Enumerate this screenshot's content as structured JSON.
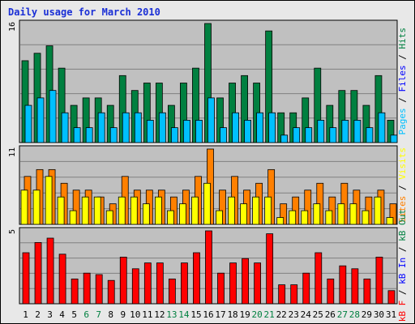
{
  "chart_data": {
    "type": "bar",
    "title": "Daily usage for March 2010",
    "days": [
      "1",
      "2",
      "3",
      "4",
      "5",
      "6",
      "7",
      "8",
      "9",
      "10",
      "11",
      "12",
      "13",
      "14",
      "15",
      "16",
      "17",
      "18",
      "19",
      "20",
      "21",
      "22",
      "23",
      "24",
      "25",
      "26",
      "27",
      "28",
      "29",
      "30",
      "31"
    ],
    "weekend_days": [
      "6",
      "7",
      "13",
      "14",
      "20",
      "21",
      "27",
      "28"
    ],
    "panels": [
      {
        "id": "hits-files-pages",
        "ymax_label": "16",
        "ymax": 16,
        "legend": [
          {
            "label": "Pages",
            "color": "#00c0ff"
          },
          {
            "label": " / ",
            "color": "#000000"
          },
          {
            "label": "Files",
            "color": "#0000ff"
          },
          {
            "label": " / ",
            "color": "#000000"
          },
          {
            "label": "Hits",
            "color": "#008040"
          }
        ],
        "series": [
          {
            "name": "Hits",
            "color": "#008040",
            "values": [
              11,
              12,
              13,
              10,
              5,
              6,
              6,
              5,
              9,
              7,
              8,
              8,
              5,
              8,
              10,
              16,
              6,
              8,
              9,
              8,
              15,
              4,
              4,
              6,
              10,
              5,
              7,
              7,
              5,
              9,
              3
            ]
          },
          {
            "name": "Files",
            "color": "#0000ff",
            "values": [
              5,
              6,
              7,
              4,
              2,
              2,
              4,
              2,
              4,
              4,
              3,
              4,
              2,
              3,
              3,
              6,
              2,
              4,
              3,
              4,
              4,
              1,
              2,
              2,
              3,
              2,
              3,
              3,
              2,
              4,
              1
            ]
          },
          {
            "name": "Pages",
            "color": "#00c0ff",
            "values": [
              5,
              6,
              7,
              4,
              2,
              2,
              4,
              2,
              4,
              4,
              3,
              4,
              2,
              3,
              3,
              6,
              2,
              4,
              3,
              4,
              4,
              1,
              2,
              2,
              3,
              2,
              3,
              3,
              2,
              4,
              1
            ]
          }
        ]
      },
      {
        "id": "visits-sites",
        "ymax_label": "11",
        "ymax": 11,
        "legend": [
          {
            "label": "Sites",
            "color": "#ff8000"
          },
          {
            "label": " / ",
            "color": "#000000"
          },
          {
            "label": "Visits",
            "color": "#ffff00"
          }
        ],
        "series": [
          {
            "name": "Sites",
            "color": "#ff8000",
            "values": [
              7,
              8,
              8,
              6,
              5,
              5,
              4,
              3,
              7,
              5,
              5,
              5,
              4,
              5,
              7,
              11,
              5,
              7,
              5,
              6,
              8,
              3,
              4,
              5,
              6,
              4,
              6,
              5,
              4,
              5,
              3
            ]
          },
          {
            "name": "Visits",
            "color": "#ffff00",
            "values": [
              5,
              5,
              7,
              4,
              2,
              4,
              4,
              2,
              4,
              4,
              3,
              4,
              2,
              3,
              4,
              6,
              2,
              4,
              3,
              4,
              4,
              1,
              2,
              2,
              3,
              2,
              3,
              3,
              2,
              4,
              1
            ]
          }
        ]
      },
      {
        "id": "kb",
        "ymax_label": "5",
        "ymax": 5,
        "legend": [
          {
            "label": "kB F",
            "color": "#ff0000"
          },
          {
            "label": " / ",
            "color": "#000000"
          },
          {
            "label": "kB In",
            "color": "#0000ff"
          },
          {
            "label": " / ",
            "color": "#000000"
          },
          {
            "label": "kB Out",
            "color": "#008040"
          }
        ],
        "series": [
          {
            "name": "kB F",
            "color": "#ff0000",
            "values": [
              3.5,
              4.2,
              4.5,
              3.4,
              1.7,
              2.1,
              2.0,
              1.6,
              3.2,
              2.4,
              2.8,
              2.8,
              1.7,
              2.8,
              3.5,
              5.0,
              2.1,
              2.8,
              3.1,
              2.8,
              4.8,
              1.3,
              1.3,
              2.1,
              3.5,
              1.7,
              2.6,
              2.4,
              1.7,
              3.2,
              0.9
            ]
          }
        ]
      }
    ]
  }
}
